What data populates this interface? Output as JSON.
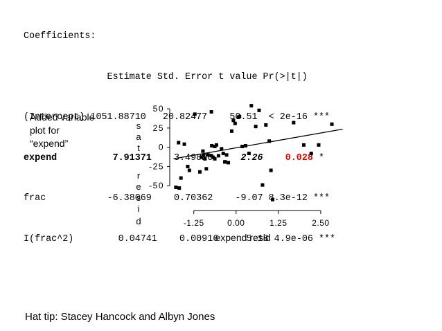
{
  "coefficients": {
    "title": "Coefficients:",
    "header": "               Estimate Std. Error t value Pr(>|t|)",
    "rows": [
      {
        "name": "(Intercept)",
        "estimate": "1051.88710",
        "se": "20.82477",
        "t": "50.51",
        "p": "< 2e-16",
        "stars": "***"
      },
      {
        "name": "expend",
        "estimate": "7.91371",
        "se": "3.49820",
        "t": "2.26",
        "p": "0.028",
        "stars": "*",
        "highlight_color": "#e00000"
      },
      {
        "name": "frac",
        "estimate": "-6.38069",
        "se": "0.70362",
        "t": "-9.07",
        "p": "8.3e-12",
        "stars": "***"
      },
      {
        "name": "I(frac^2)",
        "estimate": "0.04741",
        "se": "0.00916",
        "t": "5.18",
        "p": "4.9e-06",
        "stars": "***"
      }
    ]
  },
  "note": [
    "Added variable",
    "plot for",
    "“expend”"
  ],
  "credit": "Hat tip: Stacey Hancock and Albyn Jones",
  "chart_data": {
    "type": "scatter",
    "xlabel": "expend resid",
    "ylabel": "sat resid",
    "ylabel_letters": [
      "s",
      "a",
      "t",
      "r",
      "e",
      "s",
      "i",
      "d"
    ],
    "xticks": [
      "-1.25",
      "0.00",
      "1.25",
      "2.50"
    ],
    "xtick_values": [
      -1.25,
      0.0,
      1.25,
      2.5
    ],
    "yticks": [
      "50",
      "25",
      "0",
      "-25",
      "-50"
    ],
    "ytick_values": [
      50,
      25,
      0,
      -25,
      -50
    ],
    "xlim": [
      -1.9,
      3.3
    ],
    "ylim": [
      -75,
      60
    ],
    "x": [
      -1.68,
      -1.63,
      -1.78,
      -1.7,
      -1.43,
      -1.22,
      -1.53,
      -1.38,
      -1.07,
      -0.98,
      -0.92,
      -0.88,
      -0.83,
      -0.73,
      -0.72,
      -0.63,
      -0.68,
      -0.58,
      -0.52,
      -0.43,
      -0.38,
      -0.33,
      -0.28,
      -0.23,
      -0.13,
      -0.08,
      -0.03,
      0.07,
      0.1,
      0.18,
      0.28,
      0.38,
      0.45,
      0.58,
      0.68,
      0.78,
      0.88,
      0.98,
      1.03,
      1.08,
      1.7,
      2.0,
      2.22,
      2.44,
      2.83,
      -0.73,
      -1.03,
      -0.97,
      -0.63,
      -0.33
    ],
    "y": [
      -53,
      -40,
      -52,
      6,
      -25,
      43,
      4,
      -30,
      -32,
      -5,
      -15,
      -28,
      -10,
      46,
      2,
      -15,
      -13,
      3,
      -11,
      -2,
      -8,
      -19,
      -10,
      -20,
      21,
      35,
      31,
      39,
      40,
      1,
      2,
      -8,
      54,
      27,
      48,
      -49,
      29,
      8,
      -30,
      -68,
      32,
      3,
      -8,
      3,
      30,
      -11,
      -13,
      -11,
      1,
      -19
    ]
  }
}
